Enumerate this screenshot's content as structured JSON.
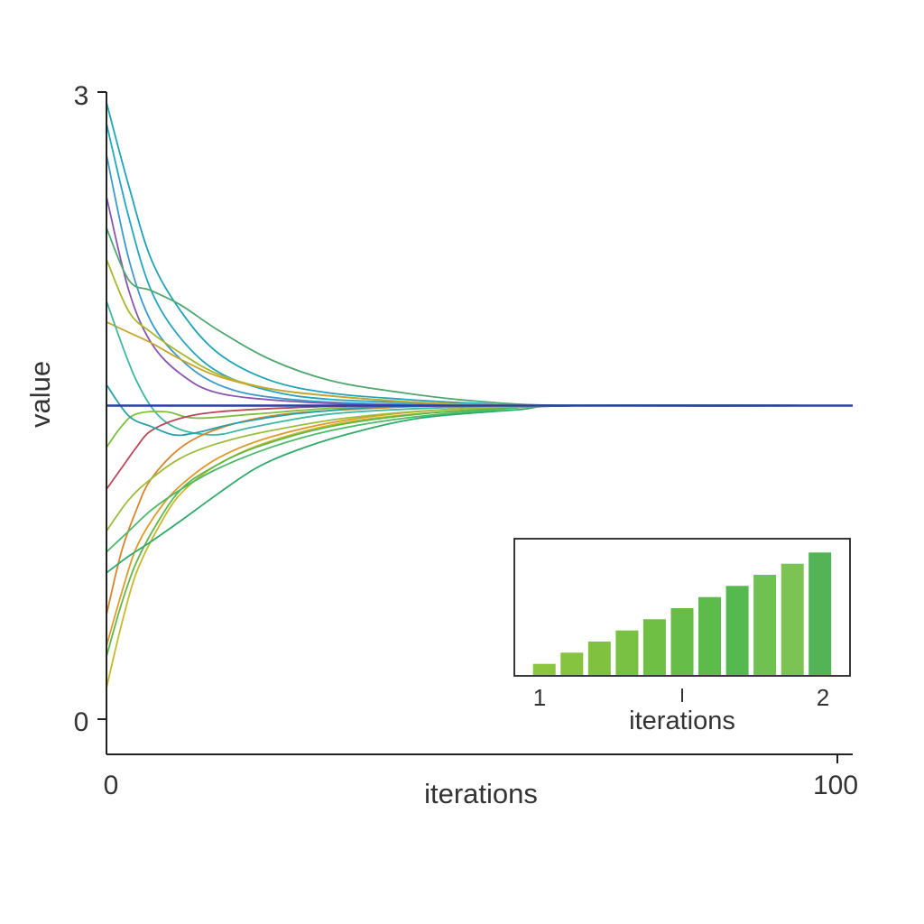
{
  "chart_data": [
    {
      "type": "line",
      "title": "",
      "xlabel": "iterations",
      "ylabel": "value",
      "xlim": [
        0,
        100
      ],
      "ylim": [
        0,
        3
      ],
      "x_ticks": [
        "0",
        "100"
      ],
      "y_ticks": [
        "0",
        "3"
      ],
      "legend": "none",
      "grid": false,
      "reference_line": {
        "y": 1.5,
        "color": "#2a3fa8"
      },
      "series": [
        {
          "color": "#1fa3b8",
          "values": [
            [
              0,
              2.95
            ],
            [
              3,
              2.55
            ],
            [
              6,
              2.2
            ],
            [
              10,
              1.95
            ],
            [
              15,
              1.75
            ],
            [
              22,
              1.62
            ],
            [
              30,
              1.56
            ],
            [
              40,
              1.53
            ],
            [
              50,
              1.51
            ],
            [
              60,
              1.5
            ],
            [
              100,
              1.5
            ]
          ]
        },
        {
          "color": "#22a6c0",
          "values": [
            [
              0,
              2.85
            ],
            [
              3,
              2.4
            ],
            [
              6,
              2.05
            ],
            [
              10,
              1.82
            ],
            [
              15,
              1.66
            ],
            [
              22,
              1.57
            ],
            [
              30,
              1.53
            ],
            [
              45,
              1.51
            ],
            [
              63,
              1.5
            ],
            [
              100,
              1.5
            ]
          ]
        },
        {
          "color": "#3a9ad0",
          "values": [
            [
              0,
              2.7
            ],
            [
              3,
              2.2
            ],
            [
              6,
              1.9
            ],
            [
              10,
              1.72
            ],
            [
              15,
              1.6
            ],
            [
              22,
              1.54
            ],
            [
              35,
              1.51
            ],
            [
              63,
              1.5
            ],
            [
              100,
              1.5
            ]
          ]
        },
        {
          "color": "#8a55b0",
          "values": [
            [
              0,
              2.5
            ],
            [
              3,
              2.05
            ],
            [
              6,
              1.8
            ],
            [
              10,
              1.65
            ],
            [
              15,
              1.56
            ],
            [
              25,
              1.52
            ],
            [
              40,
              1.5
            ],
            [
              63,
              1.5
            ],
            [
              100,
              1.5
            ]
          ]
        },
        {
          "color": "#4ea870",
          "values": [
            [
              0,
              2.35
            ],
            [
              3,
              2.1
            ],
            [
              6,
              2.05
            ],
            [
              10,
              1.98
            ],
            [
              15,
              1.86
            ],
            [
              22,
              1.72
            ],
            [
              30,
              1.62
            ],
            [
              40,
              1.56
            ],
            [
              50,
              1.52
            ],
            [
              63,
              1.5
            ],
            [
              100,
              1.5
            ]
          ]
        },
        {
          "color": "#a8b82a",
          "values": [
            [
              0,
              2.2
            ],
            [
              3,
              1.95
            ],
            [
              6,
              1.85
            ],
            [
              10,
              1.75
            ],
            [
              15,
              1.65
            ],
            [
              22,
              1.58
            ],
            [
              32,
              1.54
            ],
            [
              45,
              1.51
            ],
            [
              63,
              1.5
            ],
            [
              100,
              1.5
            ]
          ]
        },
        {
          "color": "#c9a52a",
          "values": [
            [
              0,
              1.9
            ],
            [
              3,
              1.85
            ],
            [
              6,
              1.8
            ],
            [
              10,
              1.72
            ],
            [
              15,
              1.64
            ],
            [
              22,
              1.58
            ],
            [
              32,
              1.54
            ],
            [
              45,
              1.51
            ],
            [
              63,
              1.5
            ],
            [
              100,
              1.5
            ]
          ]
        },
        {
          "color": "#3eb8a0",
          "values": [
            [
              0,
              2.0
            ],
            [
              4,
              1.62
            ],
            [
              8,
              1.42
            ],
            [
              14,
              1.36
            ],
            [
              20,
              1.4
            ],
            [
              30,
              1.46
            ],
            [
              45,
              1.49
            ],
            [
              63,
              1.5
            ],
            [
              100,
              1.5
            ]
          ]
        },
        {
          "color": "#7bbf3a",
          "values": [
            [
              0,
              1.3
            ],
            [
              2,
              1.4
            ],
            [
              4,
              1.46
            ],
            [
              8,
              1.47
            ],
            [
              12,
              1.44
            ],
            [
              20,
              1.46
            ],
            [
              32,
              1.49
            ],
            [
              50,
              1.5
            ],
            [
              100,
              1.5
            ]
          ]
        },
        {
          "color": "#b8485a",
          "values": [
            [
              0,
              1.1
            ],
            [
              2,
              1.2
            ],
            [
              4,
              1.3
            ],
            [
              6,
              1.38
            ],
            [
              10,
              1.44
            ],
            [
              15,
              1.47
            ],
            [
              25,
              1.49
            ],
            [
              40,
              1.5
            ],
            [
              100,
              1.5
            ]
          ]
        },
        {
          "color": "#d8842a",
          "values": [
            [
              0,
              0.5
            ],
            [
              2,
              0.8
            ],
            [
              4,
              1.0
            ],
            [
              6,
              1.15
            ],
            [
              10,
              1.3
            ],
            [
              15,
              1.39
            ],
            [
              22,
              1.45
            ],
            [
              32,
              1.48
            ],
            [
              50,
              1.5
            ],
            [
              100,
              1.5
            ]
          ]
        },
        {
          "color": "#e09a2a",
          "values": [
            [
              0,
              0.35
            ],
            [
              2,
              0.6
            ],
            [
              4,
              0.82
            ],
            [
              7,
              1.0
            ],
            [
              10,
              1.12
            ],
            [
              15,
              1.25
            ],
            [
              22,
              1.35
            ],
            [
              32,
              1.43
            ],
            [
              45,
              1.48
            ],
            [
              63,
              1.5
            ],
            [
              100,
              1.5
            ]
          ]
        },
        {
          "color": "#c9b82a",
          "values": [
            [
              0,
              0.15
            ],
            [
              2,
              0.45
            ],
            [
              4,
              0.7
            ],
            [
              7,
              0.92
            ],
            [
              10,
              1.08
            ],
            [
              15,
              1.22
            ],
            [
              22,
              1.33
            ],
            [
              32,
              1.42
            ],
            [
              45,
              1.47
            ],
            [
              63,
              1.5
            ],
            [
              100,
              1.5
            ]
          ]
        },
        {
          "color": "#5fb84a",
          "values": [
            [
              0,
              0.3
            ],
            [
              2,
              0.55
            ],
            [
              4,
              0.75
            ],
            [
              7,
              0.95
            ],
            [
              10,
              1.1
            ],
            [
              14,
              1.2
            ],
            [
              20,
              1.3
            ],
            [
              30,
              1.4
            ],
            [
              42,
              1.46
            ],
            [
              55,
              1.49
            ],
            [
              63,
              1.5
            ],
            [
              100,
              1.5
            ]
          ]
        },
        {
          "color": "#2faa6a",
          "values": [
            [
              0,
              0.7
            ],
            [
              3,
              0.78
            ],
            [
              6,
              0.85
            ],
            [
              10,
              0.95
            ],
            [
              15,
              1.08
            ],
            [
              20,
              1.2
            ],
            [
              25,
              1.28
            ],
            [
              32,
              1.36
            ],
            [
              42,
              1.44
            ],
            [
              55,
              1.48
            ],
            [
              63,
              1.5
            ],
            [
              100,
              1.5
            ]
          ]
        },
        {
          "color": "#4cba6a",
          "values": [
            [
              0,
              0.8
            ],
            [
              3,
              0.9
            ],
            [
              6,
              1.0
            ],
            [
              10,
              1.1
            ],
            [
              15,
              1.2
            ],
            [
              22,
              1.3
            ],
            [
              30,
              1.38
            ],
            [
              40,
              1.44
            ],
            [
              52,
              1.48
            ],
            [
              63,
              1.5
            ],
            [
              100,
              1.5
            ]
          ]
        },
        {
          "color": "#27a0a8",
          "values": [
            [
              0,
              1.6
            ],
            [
              3,
              1.45
            ],
            [
              6,
              1.4
            ],
            [
              9,
              1.36
            ],
            [
              12,
              1.37
            ],
            [
              18,
              1.42
            ],
            [
              28,
              1.47
            ],
            [
              45,
              1.5
            ],
            [
              100,
              1.5
            ]
          ]
        },
        {
          "color": "#9abd3a",
          "values": [
            [
              0,
              0.9
            ],
            [
              3,
              1.05
            ],
            [
              6,
              1.15
            ],
            [
              10,
              1.25
            ],
            [
              15,
              1.32
            ],
            [
              22,
              1.38
            ],
            [
              32,
              1.44
            ],
            [
              45,
              1.48
            ],
            [
              63,
              1.5
            ],
            [
              100,
              1.5
            ]
          ]
        }
      ]
    },
    {
      "type": "bar",
      "title": "",
      "xlabel": "iterations",
      "ylabel": "",
      "x_ticks": [
        "1",
        "2"
      ],
      "values": [
        1,
        2,
        3,
        4,
        5,
        6,
        7,
        8,
        9,
        10,
        11
      ],
      "ylim": [
        0,
        12
      ],
      "grid": false,
      "legend": "none",
      "colors": [
        "#8cc63f",
        "#86c43f",
        "#80c240",
        "#78c142",
        "#6fbf45",
        "#66bd48",
        "#5dbb4c",
        "#55b950",
        "#6fc150",
        "#7bc453",
        "#52b456"
      ]
    }
  ]
}
